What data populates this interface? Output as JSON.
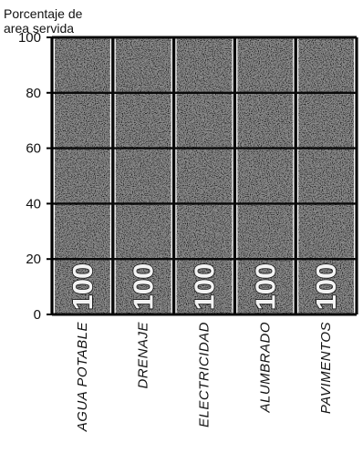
{
  "chart_data": {
    "type": "bar",
    "ylabel_lines": [
      "Porcentaje de",
      "area servida"
    ],
    "categories": [
      "AGUA POTABLE",
      "DRENAJE",
      "ELECTRICIDAD",
      "ALUMBRADO",
      "PAVIMENTOS"
    ],
    "values": [
      100,
      100,
      100,
      100,
      100
    ],
    "data_labels": [
      "100",
      "100",
      "100",
      "100",
      "100"
    ],
    "ylim": [
      0,
      100
    ],
    "yticks": [
      "0",
      "20",
      "40",
      "60",
      "80",
      "100"
    ],
    "bar_color": "#8a8a8a",
    "grid": true
  }
}
